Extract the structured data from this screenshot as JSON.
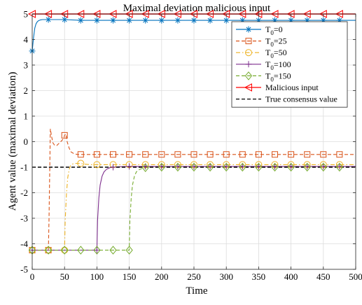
{
  "chart_data": {
    "type": "line",
    "title": "Maximal deviation malicious input",
    "xlabel": "Time",
    "ylabel": "Agent value (maximal deviation)",
    "xlim": [
      0,
      500
    ],
    "ylim": [
      -5,
      5
    ],
    "xticks": [
      0,
      50,
      100,
      150,
      200,
      250,
      300,
      350,
      400,
      450,
      500
    ],
    "yticks": [
      -5,
      -4,
      -3,
      -2,
      -1,
      0,
      1,
      2,
      3,
      4,
      5
    ],
    "grid": true,
    "legend_position": "top-right",
    "legend_labels": {
      "T0=0": {
        "base": "T",
        "sub": "0",
        "suffix": "=0"
      },
      "T0=25": {
        "base": "T",
        "sub": "0",
        "suffix": "=25"
      },
      "T0=50": {
        "base": "T",
        "sub": "0",
        "suffix": "=50"
      },
      "T0=100": {
        "base": "T",
        "sub": "0",
        "suffix": "=100"
      },
      "T0=150": {
        "base": "T",
        "sub": "0",
        "suffix": "=150"
      }
    },
    "series": [
      {
        "name": "T0=0",
        "color": "#0072BD",
        "dash": "solid",
        "marker": "asterisk",
        "x": [
          0,
          2,
          4,
          6,
          8,
          10,
          13,
          16,
          20,
          25,
          50,
          75,
          100,
          125,
          150,
          175,
          200,
          225,
          250,
          275,
          300,
          325,
          350,
          375,
          400,
          425,
          450,
          475,
          500
        ],
        "y": [
          3.55,
          4.05,
          4.45,
          4.62,
          4.7,
          4.74,
          4.77,
          4.78,
          4.78,
          4.78,
          4.78,
          4.75,
          4.75,
          4.75,
          4.75,
          4.75,
          4.75,
          4.75,
          4.75,
          4.75,
          4.75,
          4.75,
          4.75,
          4.75,
          4.75,
          4.75,
          4.75,
          4.75,
          4.75
        ],
        "marker_x": [
          0,
          25,
          50,
          75,
          100,
          125,
          150,
          175,
          200,
          225,
          250,
          275,
          300,
          325,
          350,
          375,
          400,
          425,
          450,
          475
        ]
      },
      {
        "name": "T0=25",
        "color": "#D95319",
        "dash": "dashed",
        "marker": "square",
        "x": [
          0,
          25,
          26,
          28,
          30,
          32,
          35,
          38,
          42,
          46,
          49,
          50,
          52,
          54,
          57,
          60,
          65,
          70,
          75,
          100,
          125,
          150,
          175,
          200,
          225,
          250,
          275,
          300,
          325,
          350,
          375,
          400,
          425,
          450,
          475,
          500
        ],
        "y": [
          -4.25,
          -4.25,
          -3.05,
          0.5,
          0.2,
          -0.05,
          -0.15,
          -0.15,
          -0.05,
          0.05,
          0.15,
          0.25,
          0.3,
          0.0,
          -0.25,
          -0.4,
          -0.48,
          -0.5,
          -0.5,
          -0.5,
          -0.5,
          -0.5,
          -0.5,
          -0.5,
          -0.5,
          -0.5,
          -0.5,
          -0.5,
          -0.5,
          -0.5,
          -0.5,
          -0.5,
          -0.5,
          -0.5,
          -0.5,
          -0.5
        ],
        "marker_x": [
          0,
          25,
          50,
          75,
          100,
          125,
          150,
          175,
          200,
          225,
          250,
          275,
          300,
          325,
          350,
          375,
          400,
          425,
          450,
          475
        ]
      },
      {
        "name": "T0=50",
        "color": "#EDB120",
        "dash": "dashdot",
        "marker": "circle",
        "x": [
          0,
          50,
          51,
          53,
          55,
          57,
          59,
          62,
          66,
          70,
          75,
          80,
          90,
          100,
          125,
          150,
          175,
          200,
          225,
          250,
          275,
          300,
          325,
          350,
          375,
          400,
          425,
          450,
          475,
          500
        ],
        "y": [
          -4.25,
          -4.25,
          -3.1,
          -2.0,
          -1.4,
          -1.1,
          -0.95,
          -0.88,
          -0.85,
          -0.85,
          -0.85,
          -0.88,
          -0.9,
          -0.9,
          -0.9,
          -0.9,
          -0.9,
          -0.9,
          -0.9,
          -0.9,
          -0.9,
          -0.9,
          -0.9,
          -0.9,
          -0.9,
          -0.9,
          -0.9,
          -0.9,
          -0.9,
          -0.9
        ],
        "marker_x": [
          0,
          25,
          50,
          75,
          100,
          125,
          150,
          175,
          200,
          225,
          250,
          275,
          300,
          325,
          350,
          375,
          400,
          425,
          450,
          475
        ]
      },
      {
        "name": "T0=100",
        "color": "#7E2F8E",
        "dash": "solid",
        "marker": "plus",
        "x": [
          0,
          100,
          101,
          103,
          105,
          108,
          111,
          115,
          120,
          125,
          135,
          150,
          175,
          200,
          225,
          250,
          275,
          300,
          325,
          350,
          375,
          400,
          425,
          450,
          475,
          500
        ],
        "y": [
          -4.25,
          -4.25,
          -3.1,
          -2.2,
          -1.7,
          -1.35,
          -1.18,
          -1.08,
          -1.02,
          -1.0,
          -0.98,
          -0.97,
          -0.97,
          -0.97,
          -0.97,
          -0.97,
          -0.97,
          -0.97,
          -0.97,
          -0.97,
          -0.97,
          -0.97,
          -0.97,
          -0.97,
          -0.97,
          -0.97
        ],
        "marker_x": [
          0,
          100,
          125,
          150,
          175,
          200,
          225,
          250,
          275,
          300,
          325,
          350,
          375,
          400,
          425,
          450,
          475
        ]
      },
      {
        "name": "T0=150",
        "color": "#77AC30",
        "dash": "dashed",
        "marker": "diamond",
        "x": [
          0,
          150,
          151,
          153,
          155,
          158,
          161,
          165,
          170,
          175,
          185,
          200,
          225,
          250,
          275,
          300,
          325,
          350,
          375,
          400,
          425,
          450,
          475,
          500
        ],
        "y": [
          -4.25,
          -4.25,
          -3.1,
          -2.2,
          -1.7,
          -1.35,
          -1.18,
          -1.1,
          -1.05,
          -1.02,
          -1.0,
          -1.0,
          -1.0,
          -1.0,
          -1.0,
          -1.0,
          -1.0,
          -1.0,
          -1.0,
          -1.0,
          -1.0,
          -1.0,
          -1.0,
          -1.0
        ],
        "marker_x": [
          0,
          25,
          50,
          75,
          100,
          125,
          150,
          175,
          200,
          225,
          250,
          275,
          300,
          325,
          350,
          375,
          400,
          425,
          450,
          475
        ]
      },
      {
        "name": "Malicious input",
        "color": "#FF0000",
        "dash": "solid",
        "marker": "triangle-left",
        "x": [
          0,
          500
        ],
        "y": [
          5,
          5
        ],
        "marker_x": [
          0,
          25,
          50,
          75,
          100,
          125,
          150,
          175,
          200,
          225,
          250,
          275,
          300,
          325,
          350,
          375,
          400,
          425,
          450,
          475
        ]
      },
      {
        "name": "True consensus value",
        "color": "#000000",
        "dash": "dashed",
        "marker": "none",
        "x": [
          0,
          500
        ],
        "y": [
          -1,
          -1
        ],
        "marker_x": []
      }
    ]
  }
}
